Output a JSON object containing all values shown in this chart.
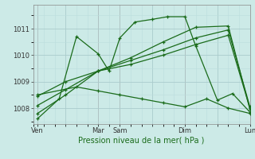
{
  "bg_color": "#cceae7",
  "line_color": "#1a6b1a",
  "grid_color_major": "#aacccc",
  "grid_color_minor": "#bbdddd",
  "title": "Pression niveau de la mer( hPa )",
  "ylim": [
    1007.4,
    1011.9
  ],
  "yticks": [
    1008,
    1009,
    1010,
    1011
  ],
  "xlim": [
    0,
    10
  ],
  "xtick_labels": [
    "Ven",
    "",
    "Mar",
    "Sam",
    "",
    "Dim",
    "",
    "Lun"
  ],
  "xtick_positions": [
    0.2,
    1.5,
    3.0,
    4.0,
    5.5,
    7.0,
    8.5,
    10.0
  ],
  "vlines": [
    0.2,
    3.0,
    4.0,
    7.0,
    10.0
  ],
  "series": [
    {
      "x": [
        0.2,
        1.2,
        2.0,
        3.0,
        3.5,
        4.0,
        4.7,
        5.5,
        6.2,
        7.0,
        7.5,
        8.5,
        9.2,
        10.0
      ],
      "y": [
        1007.6,
        1008.35,
        1010.7,
        1010.05,
        1009.4,
        1010.65,
        1011.25,
        1011.35,
        1011.45,
        1011.45,
        1010.35,
        1008.3,
        1008.55,
        1007.85
      ]
    },
    {
      "x": [
        0.2,
        1.5,
        3.0,
        4.5,
        6.0,
        7.5,
        9.0,
        10.0
      ],
      "y": [
        1008.1,
        1008.7,
        1009.4,
        1009.9,
        1010.5,
        1011.05,
        1011.1,
        1007.95
      ]
    },
    {
      "x": [
        0.2,
        1.5,
        3.0,
        4.5,
        6.0,
        7.5,
        9.0,
        10.0
      ],
      "y": [
        1007.8,
        1008.5,
        1009.4,
        1009.8,
        1010.2,
        1010.65,
        1010.95,
        1008.05
      ]
    },
    {
      "x": [
        0.2,
        1.5,
        3.0,
        4.5,
        6.0,
        7.5,
        9.0,
        10.0
      ],
      "y": [
        1008.45,
        1009.0,
        1009.4,
        1009.65,
        1010.0,
        1010.4,
        1010.75,
        1008.0
      ]
    },
    {
      "x": [
        0.2,
        2.0,
        3.0,
        4.0,
        5.0,
        6.0,
        7.0,
        8.0,
        9.0,
        10.0
      ],
      "y": [
        1008.5,
        1008.8,
        1008.65,
        1008.5,
        1008.35,
        1008.2,
        1008.05,
        1008.35,
        1008.0,
        1007.8
      ]
    }
  ]
}
